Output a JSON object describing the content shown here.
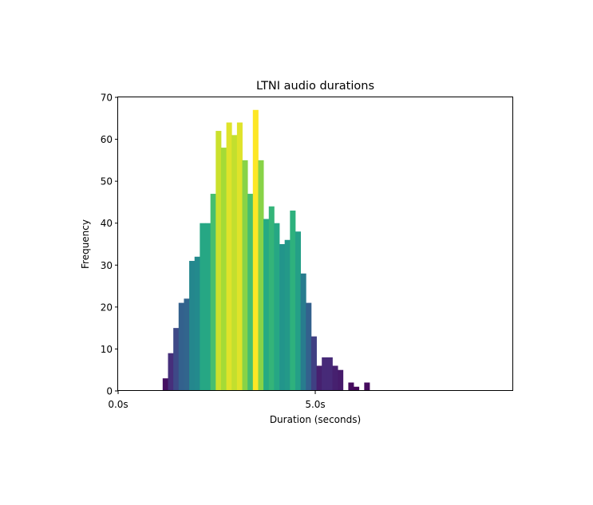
{
  "chart_data": {
    "type": "bar",
    "title": "LTNI audio durations",
    "xlabel": "Duration (seconds)",
    "ylabel": "Frequency",
    "xlim": [
      0,
      10
    ],
    "ylim": [
      0,
      70
    ],
    "x_ticks": [
      {
        "value": 0,
        "label": "0.0s"
      },
      {
        "value": 5,
        "label": "5.0s"
      }
    ],
    "y_ticks": [
      0,
      10,
      20,
      30,
      40,
      50,
      60,
      70
    ],
    "grid": false,
    "colormap": "viridis (bar color scales with frequency)",
    "bin_width": 0.1345,
    "bin_starts": [
      1.13,
      1.265,
      1.4,
      1.534,
      1.669,
      1.803,
      1.938,
      2.072,
      2.207,
      2.341,
      2.476,
      2.61,
      2.745,
      2.879,
      3.014,
      3.148,
      3.283,
      3.417,
      3.552,
      3.686,
      3.821,
      3.955,
      4.09,
      4.224,
      4.359,
      4.493,
      4.628,
      4.762,
      4.897,
      5.031,
      5.166,
      5.3,
      5.435,
      5.569,
      5.704,
      5.838,
      5.973,
      6.107,
      6.242
    ],
    "values": [
      3,
      9,
      15,
      21,
      22,
      31,
      32,
      40,
      40,
      47,
      62,
      58,
      64,
      61,
      64,
      55,
      47,
      67,
      55,
      41,
      44,
      40,
      35,
      36,
      43,
      38,
      28,
      21,
      13,
      6,
      8,
      8,
      6,
      5,
      0,
      2,
      1,
      0,
      2
    ]
  }
}
